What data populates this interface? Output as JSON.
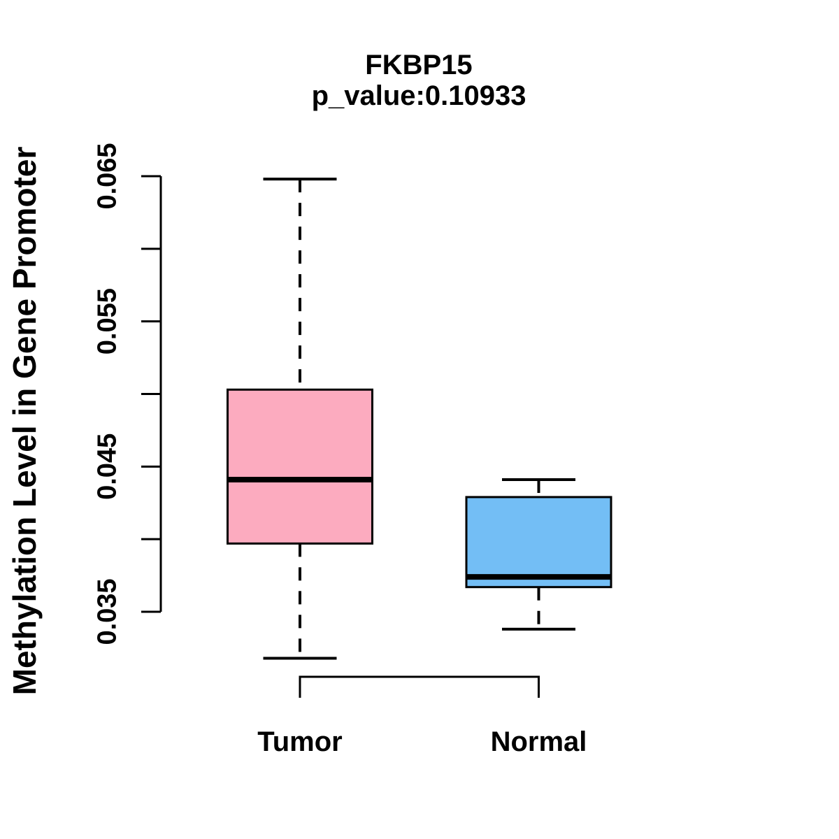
{
  "chart_data": {
    "type": "boxplot",
    "title": "FKBP15",
    "subtitle": "p_value:0.10933",
    "p_value": 0.10933,
    "ylabel": "Methylation Level in Gene Promoter",
    "xlabel": "",
    "background_color": "#FFFFFF",
    "line_color": "#000000",
    "y_axis": {
      "min": 0.035,
      "max": 0.065,
      "ticks": [
        {
          "value": 0.035,
          "label": "0.035"
        },
        {
          "value": 0.04,
          "label": ""
        },
        {
          "value": 0.045,
          "label": "0.045"
        },
        {
          "value": 0.05,
          "label": ""
        },
        {
          "value": 0.055,
          "label": "0.055"
        },
        {
          "value": 0.06,
          "label": ""
        },
        {
          "value": 0.065,
          "label": "0.065"
        }
      ]
    },
    "groups": [
      {
        "name": "Tumor",
        "fill_color": "#FCABBF",
        "stats": {
          "lower_whisker": 0.0318,
          "q1": 0.0397,
          "median": 0.0441,
          "q3": 0.0503,
          "upper_whisker": 0.0648
        }
      },
      {
        "name": "Normal",
        "fill_color": "#73BEF5",
        "stats": {
          "lower_whisker": 0.0338,
          "q1": 0.0367,
          "median": 0.0374,
          "q3": 0.0429,
          "upper_whisker": 0.0441
        }
      }
    ],
    "comparison_bracket": {
      "between": [
        "Tumor",
        "Normal"
      ]
    },
    "legend": null,
    "grid": false
  }
}
